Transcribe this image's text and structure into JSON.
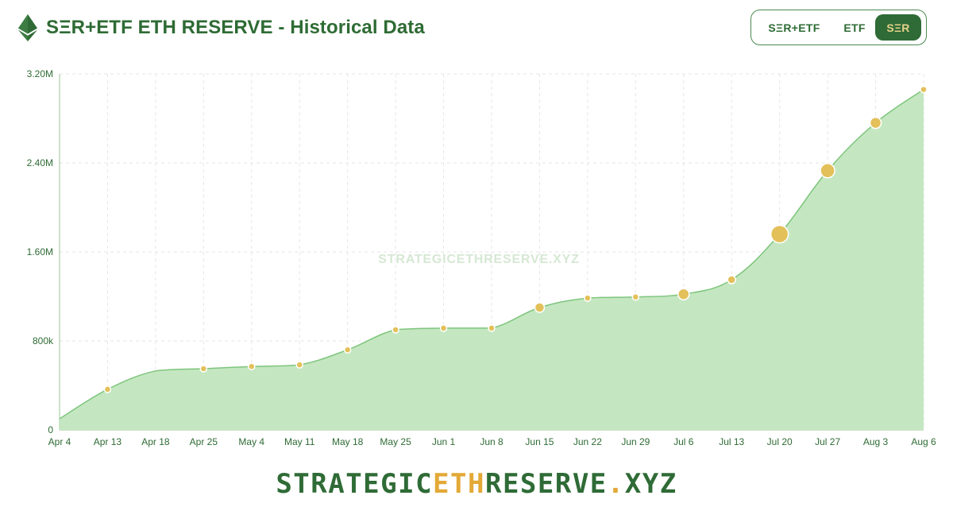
{
  "header": {
    "title": "SΞR+ETF ETH RESERVE - Historical Data",
    "logo_icon": "ethereum-icon"
  },
  "toggle": {
    "options": [
      "SΞR+ETF",
      "ETF",
      "SΞR"
    ],
    "selected": "SΞR"
  },
  "watermark": "STRATEGICETHRESERVE.XYZ",
  "footer": {
    "part1": "STRATEGIC",
    "part2": "ETH",
    "part3": "RESERVE",
    "part4": ".",
    "part5": "XYZ"
  },
  "colors": {
    "primary": "#2e6b34",
    "area_fill": "#c4e7c1",
    "line": "#7ec57c",
    "marker": "#e3c05a",
    "accent": "#e3a937"
  },
  "chart_data": {
    "type": "area",
    "x": [
      "Apr 4",
      "Apr 13",
      "Apr 18",
      "Apr 25",
      "May 4",
      "May 11",
      "May 18",
      "May 25",
      "Jun 1",
      "Jun 8",
      "Jun 15",
      "Jun 22",
      "Jun 29",
      "Jul 6",
      "Jul 13",
      "Jul 20",
      "Jul 27",
      "Aug 3",
      "Aug 6"
    ],
    "series": [
      {
        "values": [
          100000,
          365000,
          530000,
          550000,
          570000,
          585000,
          720000,
          900000,
          915000,
          915000,
          1100000,
          1185000,
          1195000,
          1220000,
          1350000,
          1760000,
          2330000,
          2760000,
          3060000
        ],
        "marker_sizes": [
          0,
          4,
          0,
          4,
          4,
          4,
          4,
          4,
          4,
          4,
          6,
          4,
          4,
          7,
          5,
          11,
          9,
          7,
          4
        ]
      }
    ],
    "y_ticks": [
      "0",
      "800k",
      "1.60M",
      "2.40M",
      "3.20M"
    ],
    "ylim": [
      0,
      3200000
    ],
    "grid": true,
    "legend": "none"
  }
}
